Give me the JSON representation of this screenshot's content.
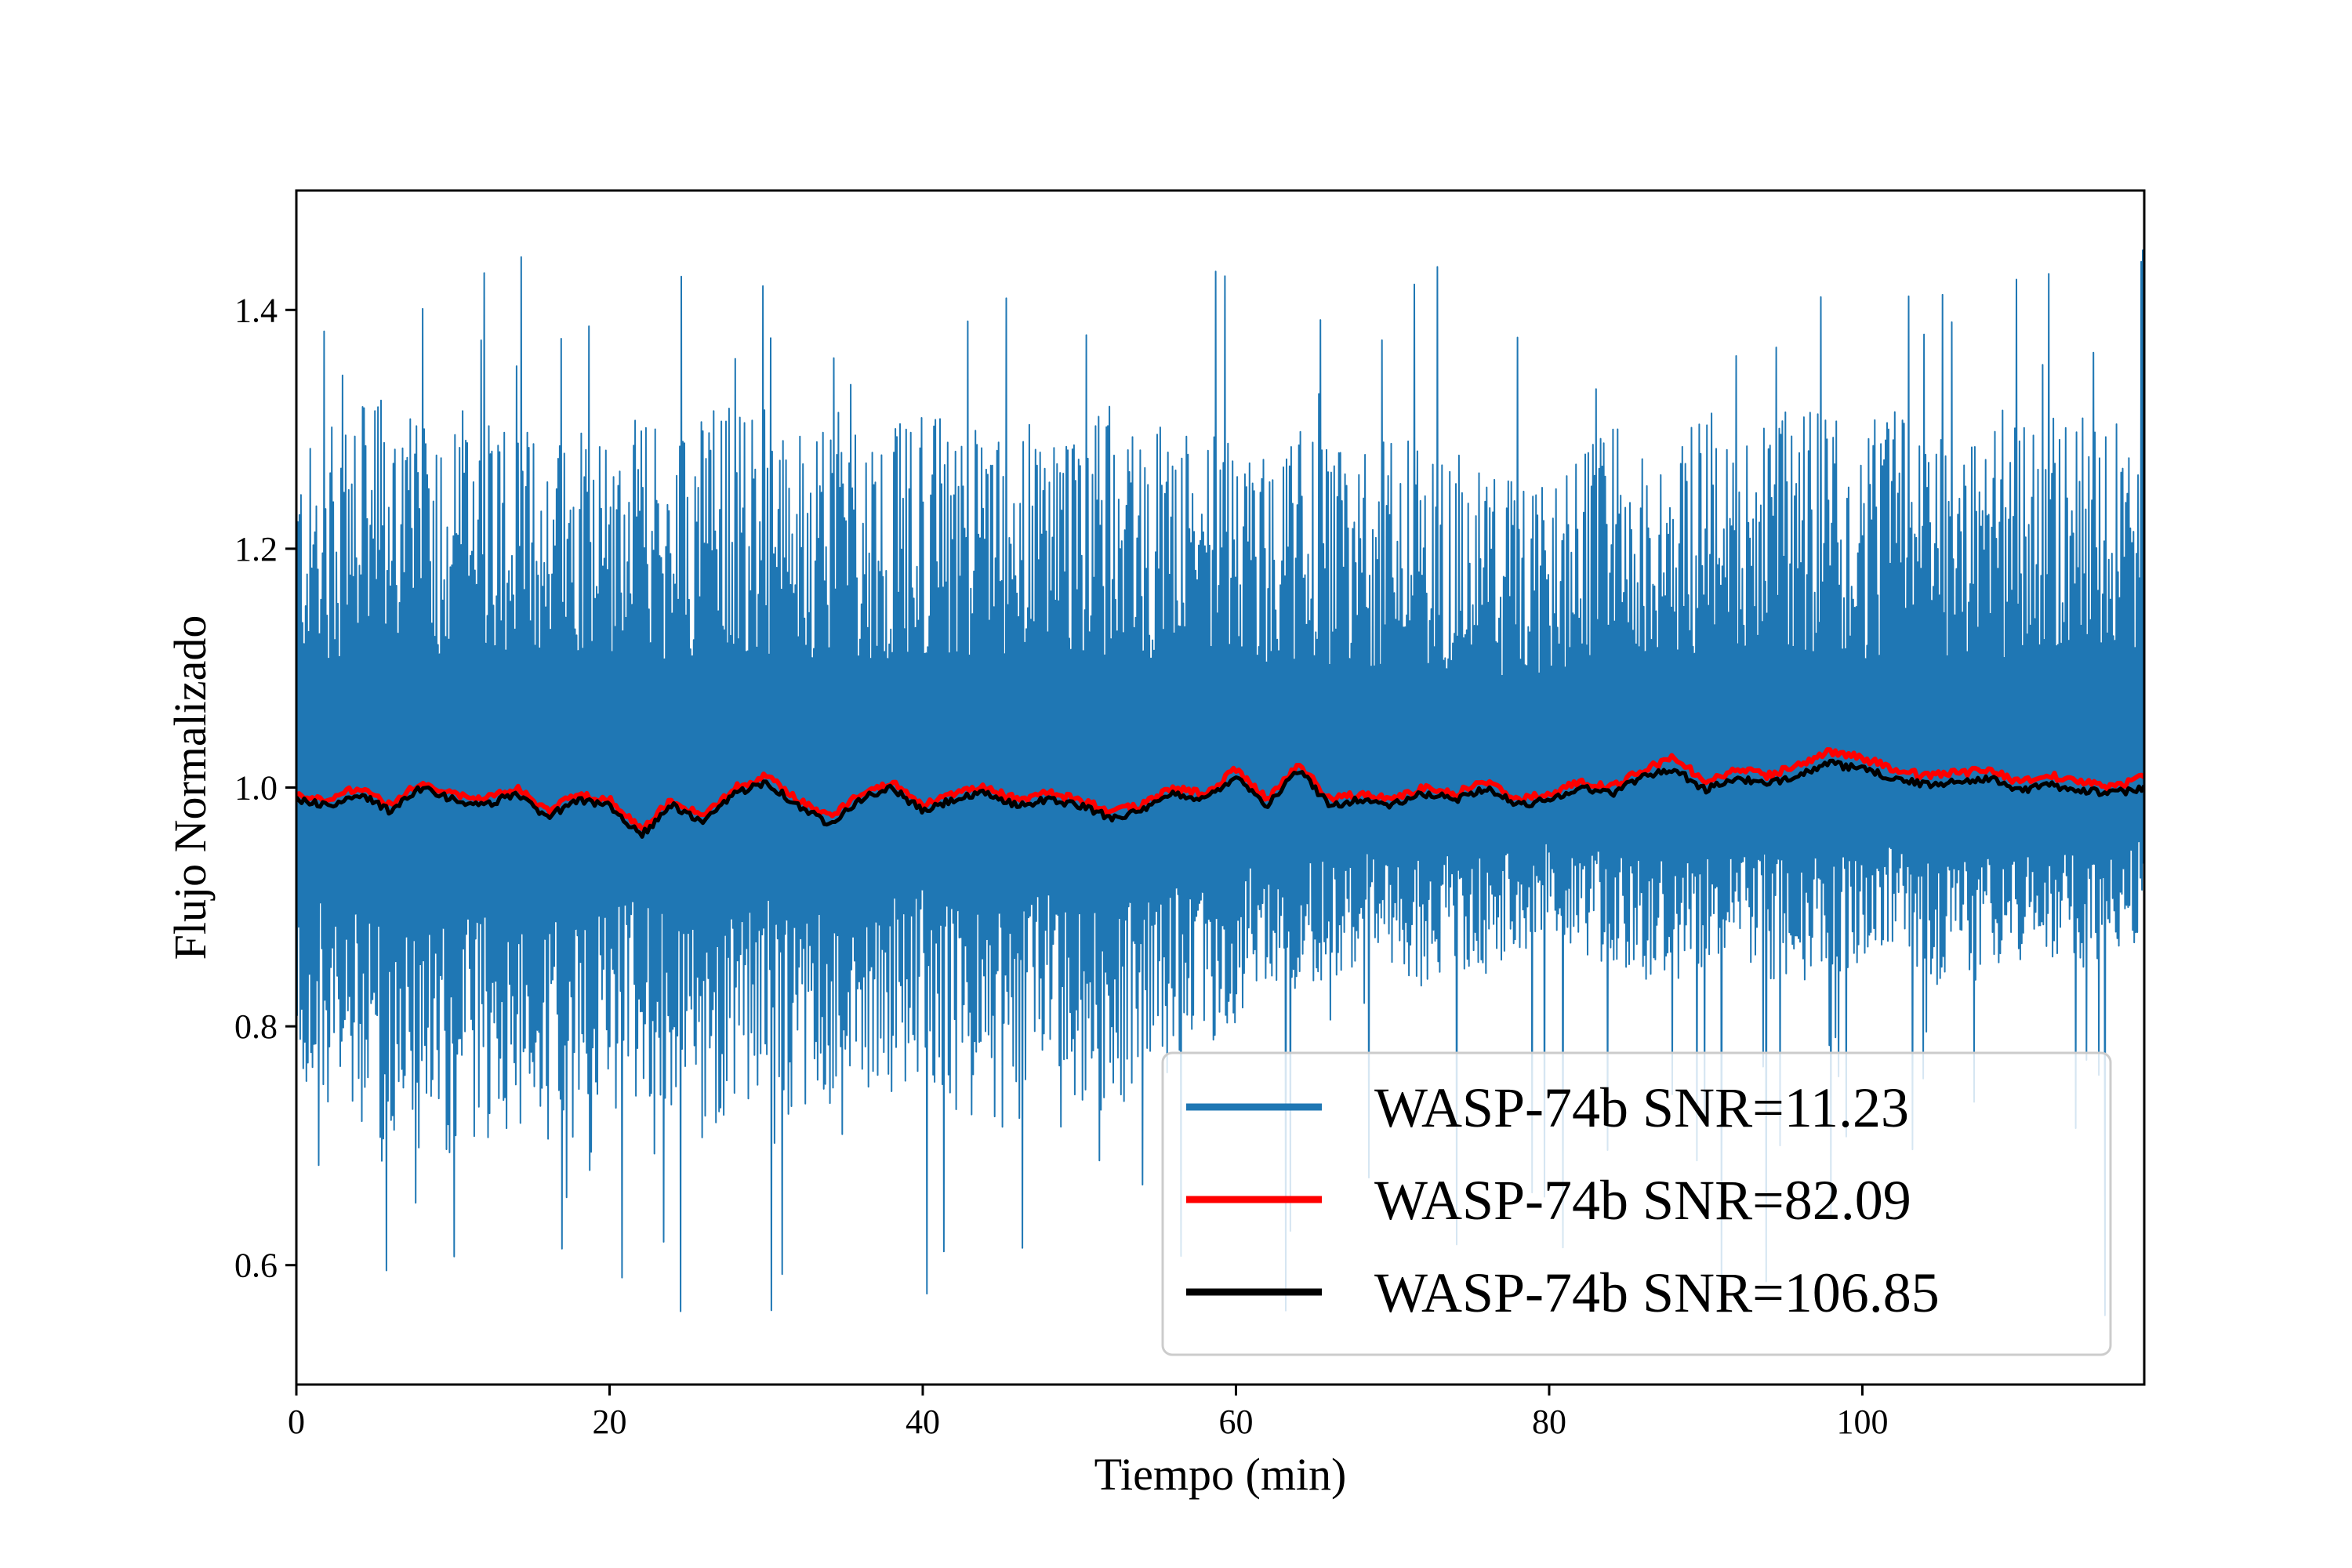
{
  "chart_data": {
    "type": "line",
    "title": "",
    "xlabel": "Tiempo (min)",
    "ylabel": "Flujo Normalizado",
    "xlim": [
      0,
      118
    ],
    "ylim": [
      0.5,
      1.5
    ],
    "x_ticks": [
      0,
      20,
      40,
      60,
      80,
      100
    ],
    "x_tick_labels": [
      "0",
      "20",
      "40",
      "60",
      "80",
      "100"
    ],
    "y_ticks": [
      0.6,
      0.8,
      1.0,
      1.2,
      1.4
    ],
    "y_tick_labels": [
      "0.6",
      "0.8",
      "1.0",
      "1.2",
      "1.4"
    ],
    "grid": false,
    "legend_position": "lower-right",
    "x": [
      0,
      2,
      4,
      6,
      8,
      10,
      12,
      14,
      16,
      18,
      20,
      22,
      24,
      26,
      28,
      30,
      32,
      34,
      36,
      38,
      40,
      42,
      44,
      46,
      48,
      50,
      52,
      54,
      56,
      58,
      60,
      62,
      64,
      66,
      68,
      70,
      72,
      74,
      76,
      78,
      80,
      82,
      84,
      86,
      88,
      90,
      92,
      94,
      96,
      98,
      100,
      102,
      104,
      106,
      108,
      110,
      112,
      114,
      116,
      118
    ],
    "series": [
      {
        "name": "WASP-74b",
        "legend_label": "WASP-74b   SNR=11.23",
        "color": "#1f77b4",
        "style": "noise-band",
        "band_low": [
          0.75,
          0.72,
          0.7,
          0.68,
          0.66,
          0.68,
          0.7,
          0.72,
          0.7,
          0.68,
          0.72,
          0.74,
          0.72,
          0.7,
          0.73,
          0.74,
          0.72,
          0.7,
          0.72,
          0.74,
          0.76,
          0.73,
          0.7,
          0.72,
          0.75,
          0.74,
          0.72,
          0.74,
          0.76,
          0.78,
          0.8,
          0.84,
          0.82,
          0.84,
          0.85,
          0.84,
          0.83,
          0.85,
          0.84,
          0.86,
          0.88,
          0.86,
          0.85,
          0.84,
          0.83,
          0.85,
          0.86,
          0.84,
          0.83,
          0.84,
          0.85,
          0.86,
          0.84,
          0.83,
          0.84,
          0.85,
          0.86,
          0.85,
          0.84,
          0.88
        ],
        "band_high": [
          1.28,
          1.3,
          1.32,
          1.34,
          1.3,
          1.32,
          1.33,
          1.31,
          1.3,
          1.32,
          1.3,
          1.31,
          1.3,
          1.32,
          1.33,
          1.31,
          1.3,
          1.32,
          1.31,
          1.3,
          1.32,
          1.31,
          1.3,
          1.31,
          1.3,
          1.32,
          1.31,
          1.3,
          1.31,
          1.3,
          1.29,
          1.28,
          1.3,
          1.29,
          1.28,
          1.3,
          1.29,
          1.28,
          1.27,
          1.26,
          1.25,
          1.28,
          1.3,
          1.31,
          1.3,
          1.32,
          1.31,
          1.3,
          1.33,
          1.31,
          1.3,
          1.32,
          1.31,
          1.3,
          1.31,
          1.3,
          1.32,
          1.31,
          1.3,
          1.28
        ],
        "extremes_min": 0.55,
        "extremes_max": 1.45
      },
      {
        "name": "WASP-74b",
        "legend_label": "WASP-74b   SNR=82.09",
        "color": "#ff0000",
        "values": [
          0.995,
          0.99,
          1.0,
          0.985,
          1.005,
          0.995,
          0.99,
          1.0,
          0.98,
          0.995,
          0.99,
          0.965,
          0.99,
          0.975,
          1.0,
          1.01,
          0.99,
          0.975,
          0.995,
          1.005,
          0.985,
          0.995,
          1.0,
          0.99,
          0.995,
          0.99,
          0.98,
          0.985,
          1.0,
          0.995,
          1.015,
          0.99,
          1.02,
          0.99,
          0.995,
          0.99,
          1.0,
          0.995,
          1.005,
          0.99,
          0.995,
          1.005,
          1.0,
          1.015,
          1.025,
          1.005,
          1.015,
          1.01,
          1.02,
          1.03,
          1.025,
          1.015,
          1.01,
          1.012,
          1.015,
          1.005,
          1.01,
          1.005,
          1.0,
          1.01
        ]
      },
      {
        "name": "WASP-74b",
        "legend_label": "WASP-74b   SNR=106.85",
        "color": "#000000",
        "values": [
          0.99,
          0.985,
          0.995,
          0.98,
          1.0,
          0.99,
          0.985,
          0.995,
          0.975,
          0.99,
          0.985,
          0.96,
          0.985,
          0.97,
          0.995,
          1.005,
          0.985,
          0.97,
          0.99,
          1.0,
          0.98,
          0.99,
          0.995,
          0.985,
          0.99,
          0.985,
          0.975,
          0.98,
          0.995,
          0.99,
          1.01,
          0.985,
          1.015,
          0.985,
          0.99,
          0.985,
          0.995,
          0.99,
          1.0,
          0.985,
          0.99,
          1.0,
          0.995,
          1.01,
          1.015,
          0.998,
          1.008,
          1.002,
          1.012,
          1.02,
          1.015,
          1.008,
          1.002,
          1.005,
          1.008,
          0.998,
          1.002,
          0.998,
          0.995,
          1.0
        ]
      }
    ]
  }
}
